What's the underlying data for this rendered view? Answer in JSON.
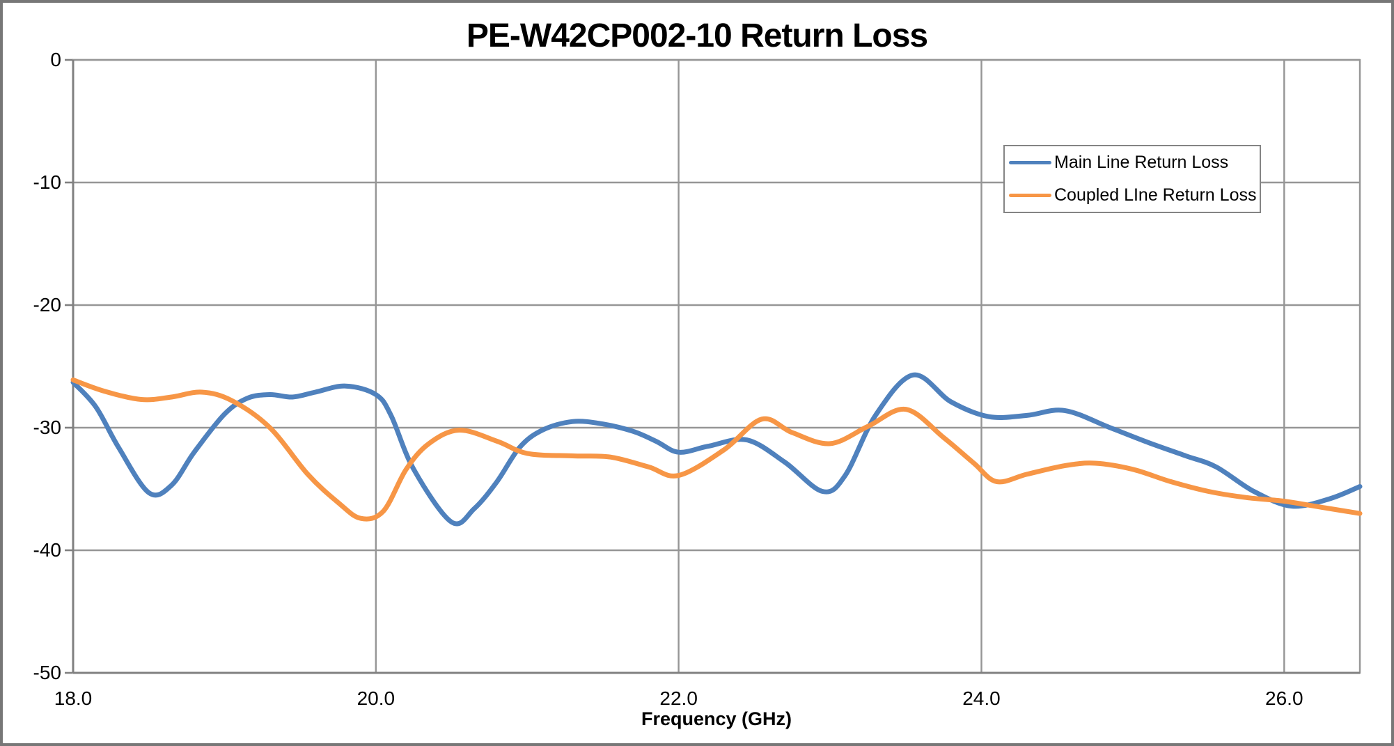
{
  "chart": {
    "title": "PE-W42CP002-10 Return Loss",
    "x_axis_title": "Frequency (GHz)"
  },
  "colors": {
    "background": "#FFFFFF",
    "outer_border": "#777777",
    "gridline": "#969696",
    "axis": "#808080",
    "text": "#000000",
    "series_blue": "#4F81BD",
    "series_orange": "#F79646"
  },
  "legend": {
    "position": "inside top-right",
    "border_color": "#848484"
  },
  "chart_data": {
    "type": "line",
    "title": "PE-W42CP002-10 Return Loss",
    "xlabel": "Frequency (GHz)",
    "ylabel": "",
    "xlim": [
      18.0,
      26.5
    ],
    "ylim": [
      -50,
      0
    ],
    "grid": true,
    "legend_position": "inside top-right",
    "xticks": {
      "values": [
        18.0,
        20.0,
        22.0,
        24.0,
        26.0
      ],
      "labels": [
        "18.0",
        "20.0",
        "22.0",
        "24.0",
        "26.0"
      ]
    },
    "yticks": {
      "values": [
        0,
        -10,
        -20,
        -30,
        -40,
        -50
      ],
      "labels": [
        "0",
        "-10",
        "-20",
        "-30",
        "-40",
        "-50"
      ]
    },
    "series": [
      {
        "name": "Main Line Return Loss",
        "color": "#4F81BD",
        "points": [
          [
            18.0,
            -26.3
          ],
          [
            18.15,
            -28.3
          ],
          [
            18.3,
            -31.6
          ],
          [
            18.5,
            -35.3
          ],
          [
            18.65,
            -34.7
          ],
          [
            18.8,
            -32.0
          ],
          [
            19.0,
            -28.9
          ],
          [
            19.15,
            -27.6
          ],
          [
            19.3,
            -27.3
          ],
          [
            19.45,
            -27.5
          ],
          [
            19.6,
            -27.1
          ],
          [
            19.8,
            -26.6
          ],
          [
            20.0,
            -27.3
          ],
          [
            20.1,
            -29.0
          ],
          [
            20.25,
            -33.4
          ],
          [
            20.5,
            -37.7
          ],
          [
            20.65,
            -36.6
          ],
          [
            20.8,
            -34.4
          ],
          [
            20.95,
            -31.6
          ],
          [
            21.1,
            -30.2
          ],
          [
            21.3,
            -29.5
          ],
          [
            21.5,
            -29.7
          ],
          [
            21.7,
            -30.3
          ],
          [
            21.85,
            -31.1
          ],
          [
            22.0,
            -32.0
          ],
          [
            22.2,
            -31.5
          ],
          [
            22.45,
            -31.0
          ],
          [
            22.7,
            -32.8
          ],
          [
            22.95,
            -35.2
          ],
          [
            23.1,
            -33.9
          ],
          [
            23.3,
            -29.0
          ],
          [
            23.55,
            -25.7
          ],
          [
            23.8,
            -27.9
          ],
          [
            24.05,
            -29.1
          ],
          [
            24.3,
            -29.0
          ],
          [
            24.55,
            -28.6
          ],
          [
            24.85,
            -30.0
          ],
          [
            25.1,
            -31.2
          ],
          [
            25.35,
            -32.3
          ],
          [
            25.55,
            -33.2
          ],
          [
            25.8,
            -35.2
          ],
          [
            26.05,
            -36.4
          ],
          [
            26.3,
            -35.8
          ],
          [
            26.5,
            -34.8
          ]
        ]
      },
      {
        "name": "Coupled LIne Return Loss",
        "color": "#F79646",
        "points": [
          [
            18.0,
            -26.1
          ],
          [
            18.2,
            -27.0
          ],
          [
            18.45,
            -27.7
          ],
          [
            18.65,
            -27.5
          ],
          [
            18.85,
            -27.1
          ],
          [
            19.05,
            -27.8
          ],
          [
            19.3,
            -30.0
          ],
          [
            19.55,
            -33.8
          ],
          [
            19.75,
            -36.1
          ],
          [
            19.9,
            -37.4
          ],
          [
            20.05,
            -36.8
          ],
          [
            20.2,
            -33.4
          ],
          [
            20.35,
            -31.3
          ],
          [
            20.55,
            -30.2
          ],
          [
            20.8,
            -31.1
          ],
          [
            21.0,
            -32.1
          ],
          [
            21.3,
            -32.3
          ],
          [
            21.55,
            -32.4
          ],
          [
            21.8,
            -33.2
          ],
          [
            22.0,
            -33.9
          ],
          [
            22.3,
            -31.8
          ],
          [
            22.55,
            -29.3
          ],
          [
            22.75,
            -30.4
          ],
          [
            23.0,
            -31.3
          ],
          [
            23.25,
            -29.9
          ],
          [
            23.5,
            -28.5
          ],
          [
            23.75,
            -30.8
          ],
          [
            23.95,
            -32.9
          ],
          [
            24.1,
            -34.4
          ],
          [
            24.3,
            -33.8
          ],
          [
            24.55,
            -33.1
          ],
          [
            24.75,
            -32.9
          ],
          [
            25.0,
            -33.4
          ],
          [
            25.25,
            -34.4
          ],
          [
            25.5,
            -35.2
          ],
          [
            25.75,
            -35.7
          ],
          [
            26.0,
            -36.0
          ],
          [
            26.25,
            -36.5
          ],
          [
            26.5,
            -37.0
          ]
        ]
      }
    ]
  }
}
